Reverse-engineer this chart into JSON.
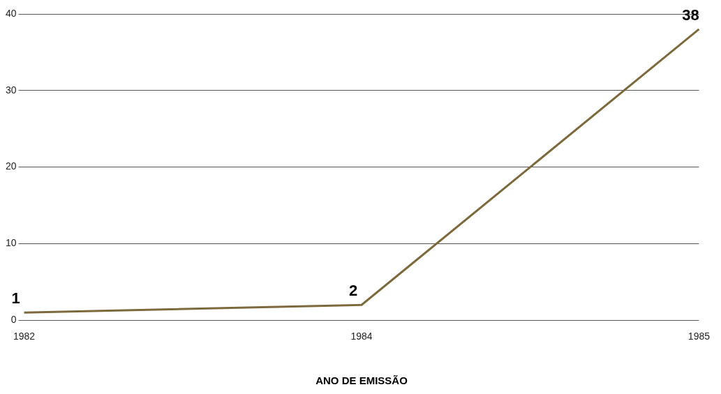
{
  "chart_data": {
    "type": "line",
    "xlabel": "ANO DE EMISSÃO",
    "categories": [
      "1982",
      "1984",
      "1985"
    ],
    "series": [
      {
        "color": "#7d6a3c",
        "values": [
          1,
          2,
          38
        ]
      }
    ],
    "ylim": [
      0,
      40
    ],
    "yticks": [
      0,
      10,
      20,
      30,
      40
    ],
    "grid": "y",
    "legend": false,
    "marker": "none",
    "line_style": "solid",
    "data_labels": true
  }
}
